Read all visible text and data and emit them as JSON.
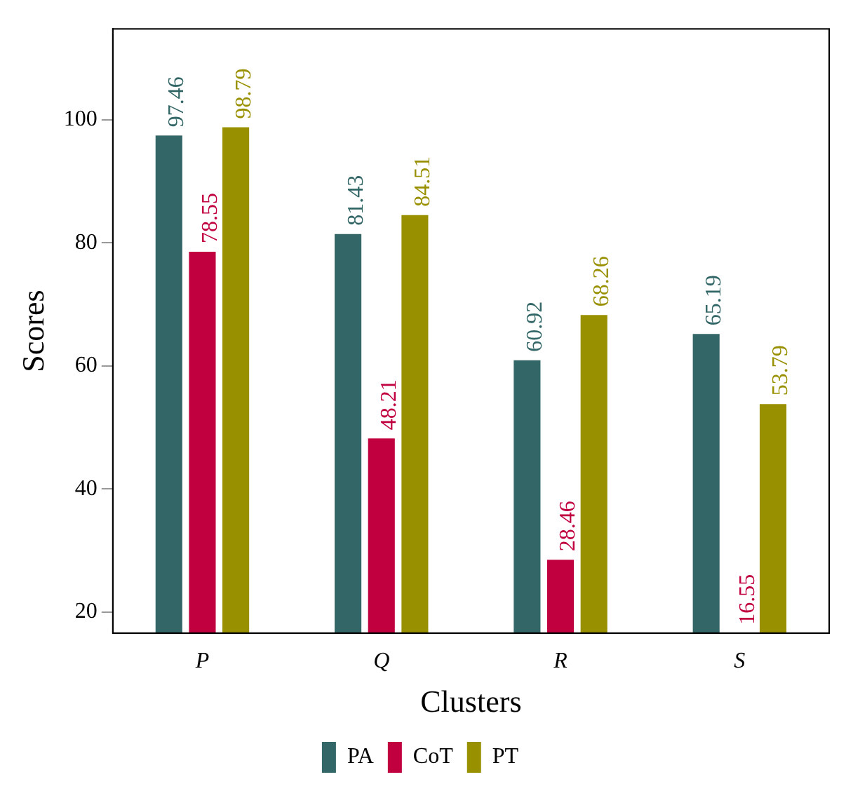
{
  "chart_data": {
    "type": "bar",
    "xlabel": "Clusters",
    "ylabel": "Scores",
    "categories": [
      "P",
      "Q",
      "R",
      "S"
    ],
    "series": [
      {
        "name": "PA",
        "color": "#336666",
        "values": [
          97.46,
          81.43,
          60.92,
          65.19
        ]
      },
      {
        "name": "CoT",
        "color": "#c0003f",
        "values": [
          78.55,
          48.21,
          28.46,
          16.55
        ]
      },
      {
        "name": "PT",
        "color": "#999000",
        "values": [
          98.79,
          84.51,
          68.26,
          53.79
        ]
      }
    ],
    "ylim": [
      16.55,
      114.8
    ],
    "yticks": [
      20,
      40,
      60,
      80,
      100
    ],
    "grid": false,
    "legend": "bottom",
    "data_labels": true
  }
}
